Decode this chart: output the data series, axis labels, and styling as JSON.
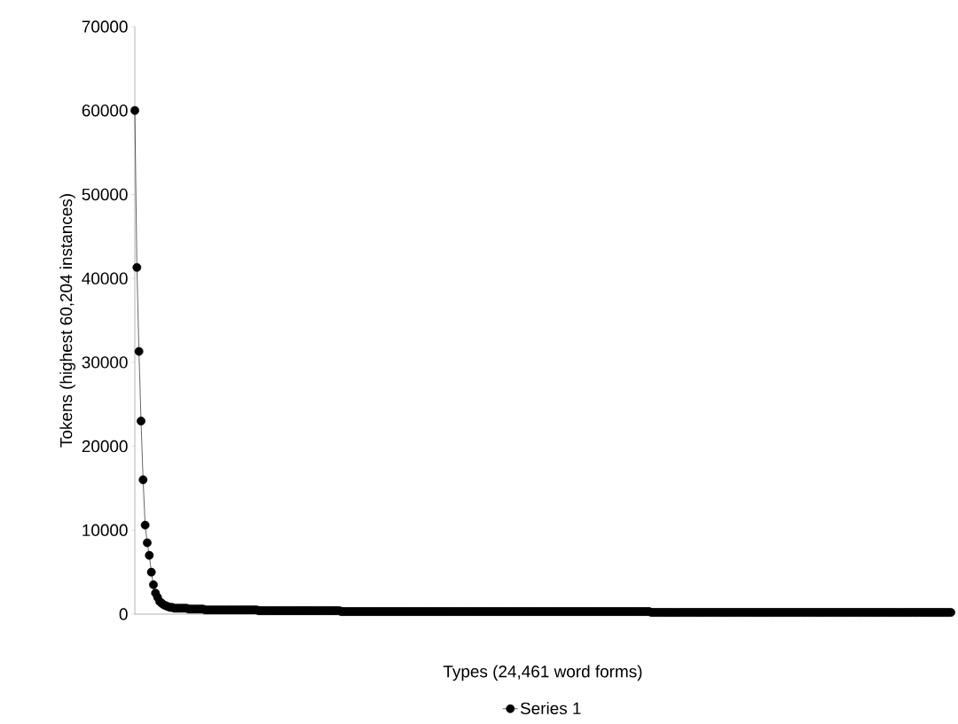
{
  "chart_data": {
    "type": "line",
    "ylabel": "Tokens (highest 60,204 instances)",
    "xlabel": "Types (24,461 word forms)",
    "ylim": [
      0,
      70000
    ],
    "yticks": [
      0,
      10000,
      20000,
      30000,
      40000,
      50000,
      60000,
      70000
    ],
    "marker": "circle",
    "line_style": "solid",
    "legend": "bottom",
    "grid": false,
    "categories": [
      null,
      null,
      null,
      null,
      null,
      null,
      null,
      null,
      null,
      null,
      null,
      null,
      null,
      null,
      null,
      null,
      null,
      null,
      null,
      null,
      null,
      null,
      null,
      null,
      null,
      null,
      null,
      null,
      null,
      null,
      null,
      null,
      null,
      null,
      null,
      null,
      null,
      null,
      null,
      null,
      null,
      null,
      null,
      null,
      null,
      null,
      null,
      null,
      null,
      null,
      null,
      null,
      null,
      null,
      null,
      null,
      null,
      null,
      null,
      null,
      null,
      null,
      null,
      null,
      null,
      null,
      null,
      null,
      null,
      null,
      null,
      null,
      null,
      null,
      null,
      null,
      null,
      null,
      null,
      null,
      null,
      null,
      null,
      null,
      null,
      null,
      null,
      null,
      null,
      null,
      null,
      null,
      null,
      null,
      null,
      null,
      null,
      null,
      null,
      null,
      null,
      null,
      null,
      null,
      null,
      null,
      null,
      null,
      null,
      null,
      null,
      null,
      null,
      null,
      null,
      null,
      null,
      null,
      null,
      null,
      null,
      null,
      null,
      null,
      null,
      null,
      null,
      null,
      null,
      null,
      null,
      null,
      null,
      null,
      null,
      null,
      null,
      null,
      null,
      null,
      null,
      null,
      null,
      null,
      null,
      null,
      null,
      null,
      null,
      null,
      null,
      null,
      null,
      null,
      null,
      null,
      null,
      null,
      null,
      null,
      null,
      null,
      null,
      null,
      null,
      null,
      null,
      null,
      null,
      null,
      null,
      null,
      null,
      null,
      null,
      null,
      null,
      null,
      null,
      null,
      null,
      null,
      null,
      null,
      null,
      null,
      null,
      null,
      null,
      null,
      null,
      null,
      null,
      null,
      null,
      null,
      null,
      null,
      null,
      null,
      null,
      null,
      null,
      null,
      null,
      null,
      null,
      null,
      null,
      null,
      null,
      null,
      null,
      null,
      null,
      null,
      null,
      null,
      null,
      null,
      null,
      null,
      null,
      null,
      null,
      null,
      null,
      null,
      null,
      null,
      null,
      null,
      null,
      null,
      null,
      null,
      null,
      null,
      null,
      null,
      null,
      null,
      null,
      null,
      null,
      null,
      null,
      null,
      null,
      null,
      null,
      null,
      null,
      null,
      null,
      null,
      null,
      null,
      null,
      null,
      null,
      null,
      null,
      null,
      null,
      null,
      null,
      null,
      null,
      null,
      null,
      null,
      null,
      null,
      null,
      null,
      null,
      null,
      null,
      null,
      null,
      null,
      null,
      null,
      null,
      null,
      null,
      null,
      null,
      null,
      null,
      null,
      null,
      null,
      null,
      null,
      null,
      null,
      null,
      null,
      null,
      null,
      null,
      null,
      null,
      null,
      null,
      null,
      null,
      null,
      null,
      null,
      null,
      null,
      null,
      null,
      null,
      null,
      null,
      null,
      null,
      null,
      null,
      null,
      null,
      null,
      null,
      null,
      null,
      null,
      null,
      null,
      null,
      null,
      null,
      null,
      null,
      null,
      null,
      null,
      null,
      null,
      null,
      null,
      null,
      null,
      null,
      null,
      null,
      null,
      null,
      null,
      null,
      null,
      null,
      null,
      null,
      null,
      null,
      null,
      null,
      null,
      null,
      null,
      null,
      null,
      null,
      null,
      null,
      null,
      null,
      null,
      null,
      null,
      null,
      null,
      null,
      null,
      null,
      null,
      null,
      null,
      null,
      null,
      null,
      null,
      null,
      null,
      null,
      null,
      null,
      null,
      null,
      null,
      null,
      null
    ],
    "series": [
      {
        "name": "Series 1",
        "color": "#000000",
        "values": [
          60000,
          41300,
          31300,
          23000,
          16000,
          10600,
          8500,
          7000,
          5000,
          3500,
          2500,
          2000,
          1500,
          1300,
          1100,
          1000,
          900,
          800,
          800,
          700,
          700,
          700,
          700,
          700,
          700,
          700,
          600,
          600,
          600,
          600,
          600,
          600,
          600,
          600,
          500,
          500,
          500,
          500,
          500,
          500,
          500,
          500,
          500,
          500,
          500,
          500,
          500,
          500,
          500,
          500,
          500,
          500,
          500,
          500,
          500,
          500,
          500,
          500,
          500,
          500,
          400,
          400,
          400,
          400,
          400,
          400,
          400,
          400,
          400,
          400,
          400,
          400,
          400,
          400,
          400,
          400,
          400,
          400,
          400,
          400,
          400,
          400,
          400,
          400,
          400,
          400,
          400,
          400,
          400,
          400,
          400,
          400,
          400,
          400,
          400,
          400,
          400,
          400,
          400,
          400,
          300,
          300,
          300,
          300,
          300,
          300,
          300,
          300,
          300,
          300,
          300,
          300,
          300,
          300,
          300,
          300,
          300,
          300,
          300,
          300,
          300,
          300,
          300,
          300,
          300,
          300,
          300,
          300,
          300,
          300,
          300,
          300,
          300,
          300,
          300,
          300,
          300,
          300,
          300,
          300,
          300,
          300,
          300,
          300,
          300,
          300,
          300,
          300,
          300,
          300,
          300,
          300,
          300,
          300,
          300,
          300,
          300,
          300,
          300,
          300,
          300,
          300,
          300,
          300,
          300,
          300,
          300,
          300,
          300,
          300,
          300,
          300,
          300,
          300,
          300,
          300,
          300,
          300,
          300,
          300,
          300,
          300,
          300,
          300,
          300,
          300,
          300,
          300,
          300,
          300,
          300,
          300,
          300,
          300,
          300,
          300,
          300,
          300,
          300,
          300,
          300,
          300,
          300,
          300,
          300,
          300,
          300,
          300,
          300,
          300,
          300,
          300,
          300,
          300,
          300,
          300,
          300,
          300,
          300,
          300,
          300,
          300,
          300,
          300,
          300,
          300,
          300,
          300,
          300,
          300,
          300,
          300,
          300,
          300,
          300,
          300,
          300,
          300,
          300,
          300,
          300,
          300,
          300,
          300,
          300,
          300,
          300,
          300,
          300,
          300,
          200,
          200,
          200,
          200,
          200,
          200,
          200,
          200,
          200,
          200,
          200,
          200,
          200,
          200,
          200,
          200,
          200,
          200,
          200,
          200,
          200,
          200,
          200,
          200,
          200,
          200,
          200,
          200,
          200,
          200,
          200,
          200,
          200,
          200,
          200,
          200,
          200,
          200,
          200,
          200,
          200,
          200,
          200,
          200,
          200,
          200,
          200,
          200,
          200,
          200,
          200,
          200,
          200,
          200,
          200,
          200,
          200,
          200,
          200,
          200,
          200,
          200,
          200,
          200,
          200,
          200,
          200,
          200,
          200,
          200,
          200,
          200,
          200,
          200,
          200,
          200,
          200,
          200,
          200,
          200,
          200,
          200,
          200,
          200,
          200,
          200,
          200,
          200,
          200,
          200,
          200,
          200,
          200,
          200,
          200,
          200,
          200,
          200,
          200,
          200,
          200,
          200,
          200,
          200,
          200,
          200,
          200,
          200,
          200,
          200,
          200,
          200,
          200,
          200,
          200,
          200,
          200,
          200,
          200,
          200,
          200,
          200,
          200,
          200,
          200,
          200,
          200,
          200,
          200,
          200,
          200,
          200,
          200,
          200,
          200,
          200,
          200,
          200,
          200,
          200,
          200,
          200,
          200,
          200,
          200,
          200
        ]
      }
    ]
  }
}
